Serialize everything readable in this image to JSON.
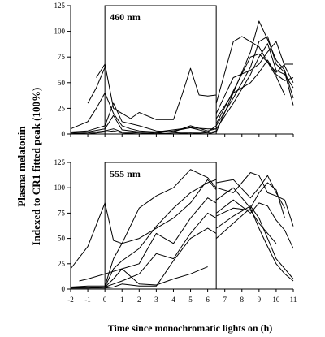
{
  "chart_data": [
    {
      "type": "line",
      "panel_label": "460 nm",
      "ylim": [
        0,
        125
      ],
      "yticks": [
        0,
        25,
        50,
        75,
        100,
        125
      ],
      "xlim": [
        -2,
        11
      ],
      "light_window": [
        0,
        6.5
      ],
      "series": [
        {
          "x": [
            -2,
            -1,
            -0.5,
            0,
            0.5,
            1,
            1.5,
            2,
            3,
            4,
            5,
            6,
            6.5
          ],
          "y": [
            5,
            12,
            25,
            40,
            20,
            8,
            5,
            3,
            2,
            4,
            6,
            5,
            5
          ]
        },
        {
          "x": [
            -0.5,
            0,
            0.5,
            1,
            1.5,
            2,
            3,
            4,
            4.5,
            5,
            5.5,
            6,
            6.5
          ],
          "y": [
            55,
            68,
            25,
            20,
            15,
            21,
            14,
            14,
            38,
            64,
            38,
            37,
            38
          ]
        },
        {
          "x": [
            -1,
            -0.5,
            0
          ],
          "y": [
            30,
            45,
            65
          ]
        },
        {
          "x": [
            -2,
            -1,
            0,
            0.5,
            1,
            2,
            3,
            4,
            5,
            6,
            6.5
          ],
          "y": [
            2,
            3,
            8,
            30,
            12,
            8,
            3,
            2,
            8,
            3,
            5
          ]
        },
        {
          "x": [
            -2,
            -1,
            0,
            0.5,
            1,
            2,
            3,
            4,
            5,
            6,
            6.5
          ],
          "y": [
            1,
            2,
            5,
            18,
            4,
            2,
            1,
            3,
            6,
            2,
            8
          ]
        },
        {
          "x": [
            -2,
            -1,
            0,
            0.5,
            1,
            2,
            3,
            4,
            5,
            6,
            6.5
          ],
          "y": [
            0,
            1,
            3,
            5,
            2,
            1,
            0,
            1,
            2,
            1,
            3
          ]
        },
        {
          "x": [
            -2,
            -1,
            0,
            0.5,
            1,
            2,
            3,
            4,
            5,
            6,
            6.5
          ],
          "y": [
            1,
            0,
            2,
            3,
            1,
            0,
            1,
            0,
            1,
            0,
            2
          ]
        },
        {
          "x": [
            6.5,
            7.5,
            8.5,
            9,
            9.5,
            10,
            10.5,
            11
          ],
          "y": [
            2,
            40,
            80,
            110,
            92,
            72,
            62,
            35
          ]
        },
        {
          "x": [
            6.5,
            7.5,
            8.5,
            9,
            9.5,
            10,
            10.5,
            11
          ],
          "y": [
            8,
            35,
            65,
            90,
            95,
            68,
            60,
            28
          ]
        },
        {
          "x": [
            6.5,
            7.5,
            8.5,
            9,
            9.5,
            10,
            10.5,
            11
          ],
          "y": [
            5,
            30,
            58,
            75,
            88,
            62,
            58,
            45
          ]
        },
        {
          "x": [
            6.5,
            7.5,
            8.5,
            9,
            9.5,
            10,
            10.5,
            11
          ],
          "y": [
            10,
            42,
            75,
            78,
            70,
            60,
            68,
            68
          ]
        },
        {
          "x": [
            6.5,
            7.5,
            8.5,
            9,
            9.5,
            10,
            10.5,
            11
          ],
          "y": [
            20,
            55,
            62,
            68,
            80,
            90,
            66,
            50
          ]
        },
        {
          "x": [
            6.5,
            7.5,
            8.5,
            9,
            9.5,
            10,
            10.5,
            11
          ],
          "y": [
            15,
            40,
            50,
            60,
            72,
            58,
            52,
            55
          ]
        },
        {
          "x": [
            6.5,
            7,
            7.5,
            8,
            9,
            9.5,
            10,
            10.5
          ],
          "y": [
            30,
            60,
            90,
            95,
            85,
            70,
            56,
            38
          ]
        }
      ]
    },
    {
      "type": "line",
      "panel_label": "555 nm",
      "ylim": [
        0,
        125
      ],
      "yticks": [
        0,
        25,
        50,
        75,
        100,
        125
      ],
      "xlim": [
        -2,
        11
      ],
      "xticks": [
        -2,
        -1,
        0,
        1,
        2,
        3,
        4,
        5,
        6,
        7,
        8,
        9,
        10,
        11
      ],
      "light_window": [
        0,
        6.5
      ],
      "series": [
        {
          "x": [
            -2,
            -1,
            0,
            0.5,
            1,
            2,
            3,
            4,
            5,
            6,
            6.5
          ],
          "y": [
            20,
            42,
            85,
            48,
            45,
            50,
            60,
            70,
            85,
            108,
            98
          ]
        },
        {
          "x": [
            -2,
            -1,
            0,
            0.5,
            1,
            2,
            3,
            4,
            5,
            6,
            6.5
          ],
          "y": [
            2,
            3,
            3,
            30,
            45,
            80,
            92,
            100,
            118,
            110,
            100
          ]
        },
        {
          "x": [
            -2,
            -1,
            0,
            0.5,
            1,
            2,
            3,
            4,
            5,
            6,
            6.5
          ],
          "y": [
            1,
            2,
            2,
            20,
            28,
            40,
            62,
            80,
            95,
            105,
            108
          ]
        },
        {
          "x": [
            -2,
            -1,
            0,
            0.5,
            1,
            2,
            3,
            4,
            5,
            6,
            6.5
          ],
          "y": [
            2,
            2,
            2,
            10,
            20,
            25,
            55,
            45,
            70,
            90,
            85
          ]
        },
        {
          "x": [
            -2,
            -1,
            0,
            0.5,
            1,
            2,
            3,
            4,
            5,
            6,
            6.5
          ],
          "y": [
            1,
            1,
            2,
            5,
            8,
            15,
            35,
            30,
            55,
            75,
            70
          ]
        },
        {
          "x": [
            -2,
            -1,
            0,
            0.5,
            1,
            2,
            3,
            4,
            5,
            6,
            6.5
          ],
          "y": [
            1,
            1,
            1,
            2,
            5,
            3,
            3,
            28,
            50,
            60,
            55
          ]
        },
        {
          "x": [
            -1.5,
            -1,
            0,
            1,
            2,
            3,
            4,
            5,
            6
          ],
          "y": [
            8,
            10,
            15,
            20,
            5,
            4,
            10,
            15,
            22
          ]
        },
        {
          "x": [
            6.5,
            7.5,
            8.5,
            9,
            9.5,
            10,
            10.5,
            11
          ],
          "y": [
            100,
            95,
            115,
            112,
            95,
            92,
            88,
            62
          ]
        },
        {
          "x": [
            6.5,
            7.5,
            8.5,
            9,
            9.5,
            10,
            10.5
          ],
          "y": [
            105,
            108,
            90,
            100,
            112,
            95,
            80
          ]
        },
        {
          "x": [
            6.5,
            7.5,
            8.5,
            9,
            9.5,
            10,
            10.5
          ],
          "y": [
            88,
            100,
            80,
            95,
            105,
            98,
            70
          ]
        },
        {
          "x": [
            6.5,
            7.5,
            8.5,
            9,
            9.5,
            10,
            10.5,
            11
          ],
          "y": [
            75,
            88,
            75,
            85,
            82,
            68,
            58,
            40
          ]
        },
        {
          "x": [
            6.5,
            7.5,
            8.5,
            9,
            9.5,
            10,
            10.5,
            11
          ],
          "y": [
            50,
            65,
            80,
            60,
            42,
            25,
            15,
            8
          ]
        },
        {
          "x": [
            6.5,
            7.5,
            8.5,
            9,
            9.5,
            10,
            10.5,
            11
          ],
          "y": [
            60,
            72,
            82,
            70,
            50,
            30,
            20,
            10
          ]
        },
        {
          "x": [
            6.5,
            7.5,
            8.5,
            9,
            9.5,
            10
          ],
          "y": [
            72,
            80,
            78,
            65,
            55,
            45
          ]
        }
      ]
    }
  ],
  "ylabel_line1": "Plasma melatonin",
  "ylabel_line2": "Indexed to CR1 fitted peak (100%)",
  "xlabel": "Time since monochromatic lights on (h)"
}
